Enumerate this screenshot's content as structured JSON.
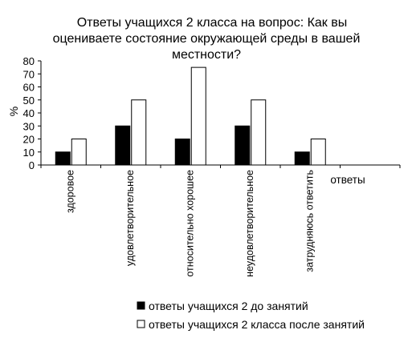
{
  "chart_data": {
    "type": "bar",
    "title_lines": [
      "Ответы учащихся 2 класса на вопрос: Как вы",
      "оцениваете состояние окружающей среды в вашей",
      "местности?"
    ],
    "ylabel": "%",
    "xlabel": "ответы",
    "ylim": [
      0,
      80
    ],
    "yticks": [
      0,
      10,
      20,
      30,
      40,
      50,
      60,
      70,
      80
    ],
    "grid": false,
    "legend_position": "bottom",
    "categories": [
      "здоровое",
      "удовлетворительное",
      "относительно хорошее",
      "неудовлетворительное",
      "затрудняюсь ответить",
      ""
    ],
    "series": [
      {
        "name": "ответы учащихся 2 до занятий",
        "color": "#000000",
        "values": [
          10,
          30,
          20,
          30,
          10,
          null
        ]
      },
      {
        "name": "ответы учащихся 2 класса после занятий",
        "color": "#ffffff",
        "values": [
          20,
          50,
          75,
          50,
          20,
          null
        ]
      }
    ]
  }
}
